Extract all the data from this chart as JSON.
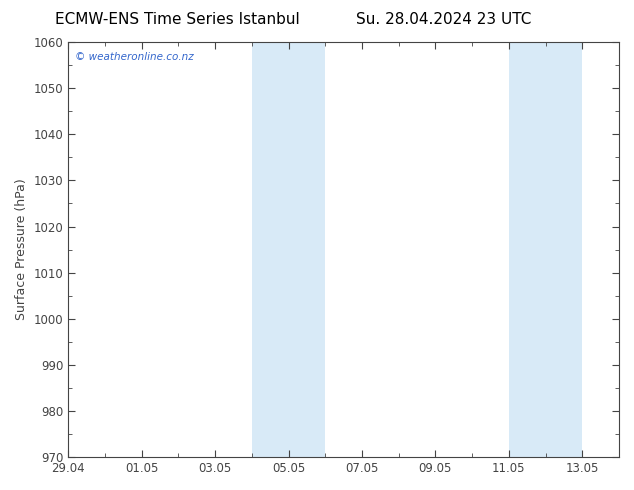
{
  "title_left": "ECMW-ENS Time Series Istanbul",
  "title_right": "Su. 28.04.2024 23 UTC",
  "ylabel": "Surface Pressure (hPa)",
  "ylim": [
    970,
    1060
  ],
  "yticks": [
    970,
    980,
    990,
    1000,
    1010,
    1020,
    1030,
    1040,
    1050,
    1060
  ],
  "xlim": [
    0,
    15
  ],
  "xtick_labels": [
    "29.04",
    "01.05",
    "03.05",
    "05.05",
    "07.05",
    "09.05",
    "11.05",
    "13.05"
  ],
  "xtick_positions": [
    0,
    2,
    4,
    6,
    8,
    10,
    12,
    14
  ],
  "shaded_regions": [
    {
      "start": 5.0,
      "end": 6.0
    },
    {
      "start": 6.0,
      "end": 7.0
    },
    {
      "start": 12.0,
      "end": 13.0
    },
    {
      "start": 13.0,
      "end": 14.0
    }
  ],
  "shade_color": "#d8eaf7",
  "background_color": "#ffffff",
  "plot_bg_color": "#ffffff",
  "watermark": "© weatheronline.co.nz",
  "watermark_color": "#3366cc",
  "title_fontsize": 11,
  "label_fontsize": 9,
  "tick_fontsize": 8.5,
  "spine_color": "#444444",
  "tick_color": "#444444"
}
